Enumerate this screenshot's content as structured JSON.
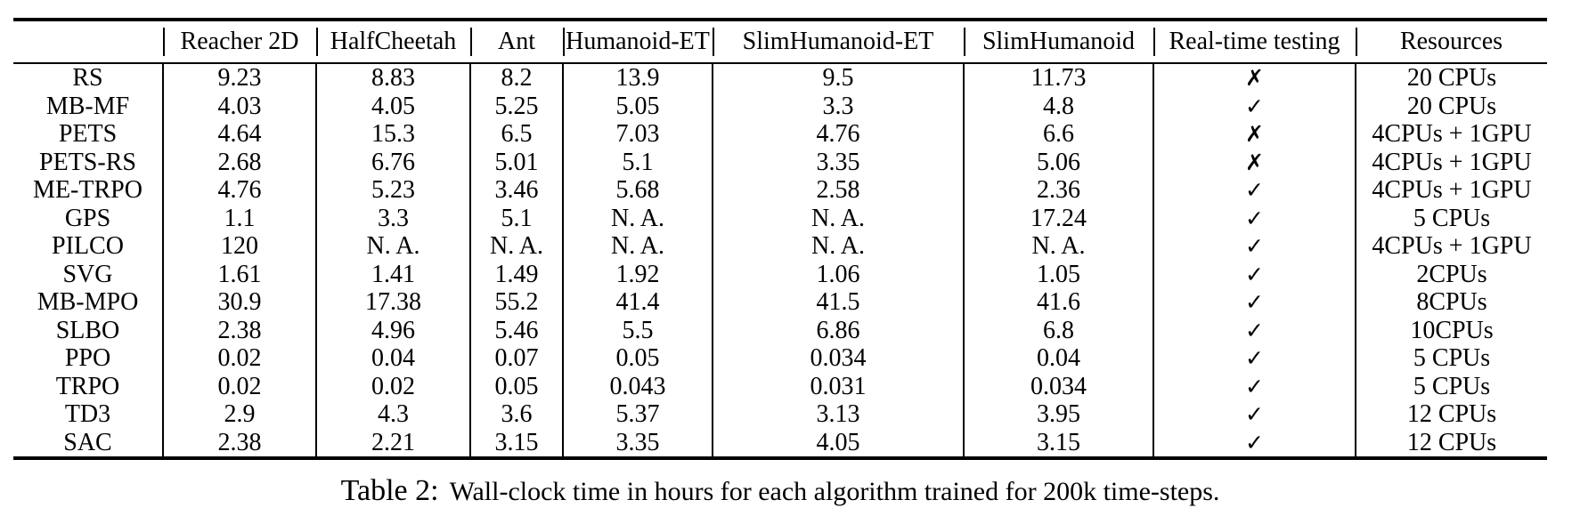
{
  "table": {
    "columns": [
      "",
      "Reacher 2D",
      "HalfCheetah",
      "Ant",
      "Humanoid-ET",
      "SlimHumanoid-ET",
      "SlimHumanoid",
      "Real-time testing",
      "Resources"
    ],
    "check_mark": "✓",
    "cross_mark": "✗",
    "rows": [
      {
        "algorithm": "RS",
        "values": [
          "9.23",
          "8.83",
          "8.2",
          "13.9",
          "9.5",
          "11.73"
        ],
        "realtime": "✗",
        "resources": "20 CPUs"
      },
      {
        "algorithm": "MB-MF",
        "values": [
          "4.03",
          "4.05",
          "5.25",
          "5.05",
          "3.3",
          "4.8"
        ],
        "realtime": "✓",
        "resources": "20 CPUs"
      },
      {
        "algorithm": "PETS",
        "values": [
          "4.64",
          "15.3",
          "6.5",
          "7.03",
          "4.76",
          "6.6"
        ],
        "realtime": "✗",
        "resources": "4CPUs + 1GPU"
      },
      {
        "algorithm": "PETS-RS",
        "values": [
          "2.68",
          "6.76",
          "5.01",
          "5.1",
          "3.35",
          "5.06"
        ],
        "realtime": "✗",
        "resources": "4CPUs + 1GPU"
      },
      {
        "algorithm": "ME-TRPO",
        "values": [
          "4.76",
          "5.23",
          "3.46",
          "5.68",
          "2.58",
          "2.36"
        ],
        "realtime": "✓",
        "resources": "4CPUs + 1GPU"
      },
      {
        "algorithm": "GPS",
        "values": [
          "1.1",
          "3.3",
          "5.1",
          "N. A.",
          "N. A.",
          "17.24"
        ],
        "realtime": "✓",
        "resources": "5 CPUs"
      },
      {
        "algorithm": "PILCO",
        "values": [
          "120",
          "N. A.",
          "N. A.",
          "N. A.",
          "N. A.",
          "N. A."
        ],
        "realtime": "✓",
        "resources": "4CPUs + 1GPU"
      },
      {
        "algorithm": "SVG",
        "values": [
          "1.61",
          "1.41",
          "1.49",
          "1.92",
          "1.06",
          "1.05"
        ],
        "realtime": "✓",
        "resources": "2CPUs"
      },
      {
        "algorithm": "MB-MPO",
        "values": [
          "30.9",
          "17.38",
          "55.2",
          "41.4",
          "41.5",
          "41.6"
        ],
        "realtime": "✓",
        "resources": "8CPUs"
      },
      {
        "algorithm": "SLBO",
        "values": [
          "2.38",
          "4.96",
          "5.46",
          "5.5",
          "6.86",
          "6.8"
        ],
        "realtime": "✓",
        "resources": "10CPUs"
      },
      {
        "algorithm": "PPO",
        "values": [
          "0.02",
          "0.04",
          "0.07",
          "0.05",
          "0.034",
          "0.04"
        ],
        "realtime": "✓",
        "resources": "5 CPUs"
      },
      {
        "algorithm": "TRPO",
        "values": [
          "0.02",
          "0.02",
          "0.05",
          "0.043",
          "0.031",
          "0.034"
        ],
        "realtime": "✓",
        "resources": "5 CPUs"
      },
      {
        "algorithm": "TD3",
        "values": [
          "2.9",
          "4.3",
          "3.6",
          "5.37",
          "3.13",
          "3.95"
        ],
        "realtime": "✓",
        "resources": "12 CPUs"
      },
      {
        "algorithm": "SAC",
        "values": [
          "2.38",
          "2.21",
          "3.15",
          "3.35",
          "4.05",
          "3.15"
        ],
        "realtime": "✓",
        "resources": "12 CPUs"
      }
    ]
  },
  "caption": {
    "label": "Table 2:",
    "text": "Wall-clock time in hours for each algorithm trained for 200k time-steps."
  }
}
